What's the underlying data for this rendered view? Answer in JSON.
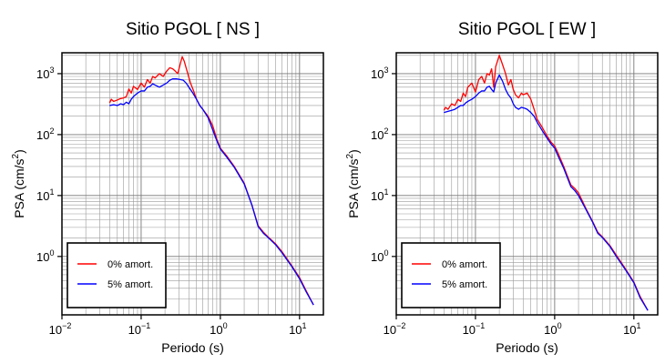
{
  "chart_data": [
    {
      "type": "line",
      "title": "Sitio PGOL [ NS ]",
      "xlabel": "Periodo (s)",
      "ylabel_main": "PSA (cm/s",
      "ylabel_sup": "2",
      "ylabel_tail": ")",
      "xscale": "log",
      "yscale": "log",
      "xlim": [
        0.01,
        20
      ],
      "ylim": [
        0.11,
        2200
      ],
      "xticks": [
        {
          "value": 0.01,
          "base": "10",
          "exp": "−2"
        },
        {
          "value": 0.1,
          "base": "10",
          "exp": "−1"
        },
        {
          "value": 1,
          "base": "10",
          "exp": "0"
        },
        {
          "value": 10,
          "base": "10",
          "exp": "1"
        }
      ],
      "yticks": [
        {
          "value": 1,
          "base": "10",
          "exp": "0"
        },
        {
          "value": 10,
          "base": "10",
          "exp": "1"
        },
        {
          "value": 100,
          "base": "10",
          "exp": "2"
        },
        {
          "value": 1000,
          "base": "10",
          "exp": "3"
        }
      ],
      "grid": true,
      "legend_position": "bottom-left",
      "series": [
        {
          "name": "0% amort.",
          "color": "#ff0000",
          "points": [
            [
              0.04,
              330
            ],
            [
              0.042,
              380
            ],
            [
              0.045,
              350
            ],
            [
              0.05,
              370
            ],
            [
              0.055,
              390
            ],
            [
              0.06,
              400
            ],
            [
              0.065,
              420
            ],
            [
              0.07,
              560
            ],
            [
              0.075,
              480
            ],
            [
              0.08,
              620
            ],
            [
              0.09,
              550
            ],
            [
              0.1,
              700
            ],
            [
              0.11,
              600
            ],
            [
              0.12,
              800
            ],
            [
              0.13,
              700
            ],
            [
              0.14,
              900
            ],
            [
              0.15,
              850
            ],
            [
              0.17,
              1000
            ],
            [
              0.19,
              900
            ],
            [
              0.21,
              1100
            ],
            [
              0.23,
              1250
            ],
            [
              0.25,
              1200
            ],
            [
              0.27,
              1100
            ],
            [
              0.29,
              1000
            ],
            [
              0.31,
              1400
            ],
            [
              0.33,
              1900
            ],
            [
              0.35,
              1600
            ],
            [
              0.38,
              1100
            ],
            [
              0.42,
              700
            ],
            [
              0.46,
              520
            ],
            [
              0.5,
              380
            ],
            [
              0.55,
              300
            ],
            [
              0.6,
              260
            ],
            [
              0.7,
              200
            ],
            [
              0.8,
              140
            ],
            [
              0.9,
              85
            ],
            [
              1.0,
              60
            ],
            [
              1.2,
              45
            ],
            [
              1.5,
              30
            ],
            [
              2.0,
              16
            ],
            [
              2.5,
              7
            ],
            [
              3.0,
              3.2
            ],
            [
              3.5,
              2.5
            ],
            [
              4.0,
              2.1
            ],
            [
              5.0,
              1.6
            ],
            [
              6.0,
              1.2
            ],
            [
              8.0,
              0.7
            ],
            [
              10.0,
              0.45
            ],
            [
              12.0,
              0.28
            ],
            [
              15.0,
              0.16
            ]
          ]
        },
        {
          "name": "5% amort.",
          "color": "#0000ff",
          "points": [
            [
              0.04,
              300
            ],
            [
              0.045,
              310
            ],
            [
              0.05,
              300
            ],
            [
              0.055,
              320
            ],
            [
              0.06,
              310
            ],
            [
              0.065,
              340
            ],
            [
              0.07,
              320
            ],
            [
              0.075,
              380
            ],
            [
              0.08,
              420
            ],
            [
              0.09,
              480
            ],
            [
              0.1,
              520
            ],
            [
              0.11,
              520
            ],
            [
              0.12,
              600
            ],
            [
              0.13,
              620
            ],
            [
              0.14,
              680
            ],
            [
              0.15,
              650
            ],
            [
              0.17,
              600
            ],
            [
              0.19,
              650
            ],
            [
              0.21,
              700
            ],
            [
              0.23,
              780
            ],
            [
              0.25,
              820
            ],
            [
              0.28,
              820
            ],
            [
              0.31,
              800
            ],
            [
              0.34,
              780
            ],
            [
              0.37,
              700
            ],
            [
              0.4,
              600
            ],
            [
              0.45,
              480
            ],
            [
              0.5,
              380
            ],
            [
              0.55,
              300
            ],
            [
              0.6,
              260
            ],
            [
              0.7,
              190
            ],
            [
              0.8,
              120
            ],
            [
              0.9,
              80
            ],
            [
              1.0,
              58
            ],
            [
              1.2,
              43
            ],
            [
              1.5,
              29
            ],
            [
              2.0,
              15.5
            ],
            [
              2.5,
              7
            ],
            [
              3.0,
              3.1
            ],
            [
              3.5,
              2.4
            ],
            [
              4.0,
              2.05
            ],
            [
              5.0,
              1.55
            ],
            [
              6.0,
              1.15
            ],
            [
              8.0,
              0.68
            ],
            [
              10.0,
              0.43
            ],
            [
              12.0,
              0.27
            ],
            [
              15.0,
              0.16
            ]
          ]
        }
      ]
    },
    {
      "type": "line",
      "title": "Sitio PGOL [ EW ]",
      "xlabel": "Periodo (s)",
      "ylabel_main": "PSA (cm/s",
      "ylabel_sup": "2",
      "ylabel_tail": ")",
      "xscale": "log",
      "yscale": "log",
      "xlim": [
        0.01,
        20
      ],
      "ylim": [
        0.11,
        2200
      ],
      "xticks": [
        {
          "value": 0.01,
          "base": "10",
          "exp": "−2"
        },
        {
          "value": 0.1,
          "base": "10",
          "exp": "−1"
        },
        {
          "value": 1,
          "base": "10",
          "exp": "0"
        },
        {
          "value": 10,
          "base": "10",
          "exp": "1"
        }
      ],
      "yticks": [
        {
          "value": 1,
          "base": "10",
          "exp": "0"
        },
        {
          "value": 10,
          "base": "10",
          "exp": "1"
        },
        {
          "value": 100,
          "base": "10",
          "exp": "2"
        },
        {
          "value": 1000,
          "base": "10",
          "exp": "3"
        }
      ],
      "grid": true,
      "legend_position": "bottom-left",
      "series": [
        {
          "name": "0% amort.",
          "color": "#ff0000",
          "points": [
            [
              0.04,
              250
            ],
            [
              0.042,
              280
            ],
            [
              0.045,
              260
            ],
            [
              0.05,
              320
            ],
            [
              0.055,
              300
            ],
            [
              0.06,
              380
            ],
            [
              0.065,
              350
            ],
            [
              0.07,
              480
            ],
            [
              0.075,
              420
            ],
            [
              0.08,
              600
            ],
            [
              0.09,
              700
            ],
            [
              0.1,
              500
            ],
            [
              0.11,
              800
            ],
            [
              0.12,
              900
            ],
            [
              0.13,
              700
            ],
            [
              0.14,
              1000
            ],
            [
              0.15,
              950
            ],
            [
              0.16,
              1200
            ],
            [
              0.17,
              600
            ],
            [
              0.18,
              1300
            ],
            [
              0.2,
              2000
            ],
            [
              0.22,
              1400
            ],
            [
              0.24,
              1000
            ],
            [
              0.26,
              650
            ],
            [
              0.28,
              800
            ],
            [
              0.3,
              550
            ],
            [
              0.32,
              450
            ],
            [
              0.35,
              400
            ],
            [
              0.38,
              480
            ],
            [
              0.4,
              450
            ],
            [
              0.45,
              480
            ],
            [
              0.5,
              380
            ],
            [
              0.55,
              260
            ],
            [
              0.6,
              180
            ],
            [
              0.7,
              130
            ],
            [
              0.8,
              95
            ],
            [
              0.9,
              75
            ],
            [
              1.0,
              65
            ],
            [
              1.1,
              50
            ],
            [
              1.3,
              30
            ],
            [
              1.6,
              15
            ],
            [
              1.8,
              13
            ],
            [
              2.0,
              11
            ],
            [
              2.5,
              6
            ],
            [
              3.0,
              3.8
            ],
            [
              3.5,
              2.5
            ],
            [
              4.0,
              2.1
            ],
            [
              5.0,
              1.5
            ],
            [
              6.0,
              1.05
            ],
            [
              8.0,
              0.6
            ],
            [
              10.0,
              0.38
            ],
            [
              12.0,
              0.22
            ],
            [
              15.0,
              0.13
            ]
          ]
        },
        {
          "name": "5% amort.",
          "color": "#0000ff",
          "points": [
            [
              0.04,
              230
            ],
            [
              0.045,
              240
            ],
            [
              0.05,
              250
            ],
            [
              0.055,
              260
            ],
            [
              0.06,
              280
            ],
            [
              0.065,
              300
            ],
            [
              0.07,
              300
            ],
            [
              0.075,
              330
            ],
            [
              0.08,
              350
            ],
            [
              0.09,
              380
            ],
            [
              0.1,
              420
            ],
            [
              0.11,
              480
            ],
            [
              0.12,
              520
            ],
            [
              0.13,
              520
            ],
            [
              0.14,
              600
            ],
            [
              0.15,
              620
            ],
            [
              0.16,
              550
            ],
            [
              0.17,
              500
            ],
            [
              0.18,
              700
            ],
            [
              0.2,
              950
            ],
            [
              0.22,
              750
            ],
            [
              0.24,
              550
            ],
            [
              0.26,
              450
            ],
            [
              0.28,
              400
            ],
            [
              0.3,
              320
            ],
            [
              0.32,
              280
            ],
            [
              0.35,
              260
            ],
            [
              0.38,
              280
            ],
            [
              0.42,
              270
            ],
            [
              0.45,
              260
            ],
            [
              0.5,
              230
            ],
            [
              0.55,
              200
            ],
            [
              0.6,
              160
            ],
            [
              0.7,
              115
            ],
            [
              0.8,
              88
            ],
            [
              0.9,
              70
            ],
            [
              1.0,
              60
            ],
            [
              1.1,
              45
            ],
            [
              1.3,
              28
            ],
            [
              1.6,
              14
            ],
            [
              1.8,
              12
            ],
            [
              2.0,
              10
            ],
            [
              2.5,
              5.8
            ],
            [
              3.0,
              3.7
            ],
            [
              3.5,
              2.4
            ],
            [
              4.0,
              2.05
            ],
            [
              5.0,
              1.45
            ],
            [
              6.0,
              1.0
            ],
            [
              8.0,
              0.58
            ],
            [
              10.0,
              0.37
            ],
            [
              12.0,
              0.21
            ],
            [
              15.0,
              0.13
            ]
          ]
        }
      ]
    }
  ]
}
